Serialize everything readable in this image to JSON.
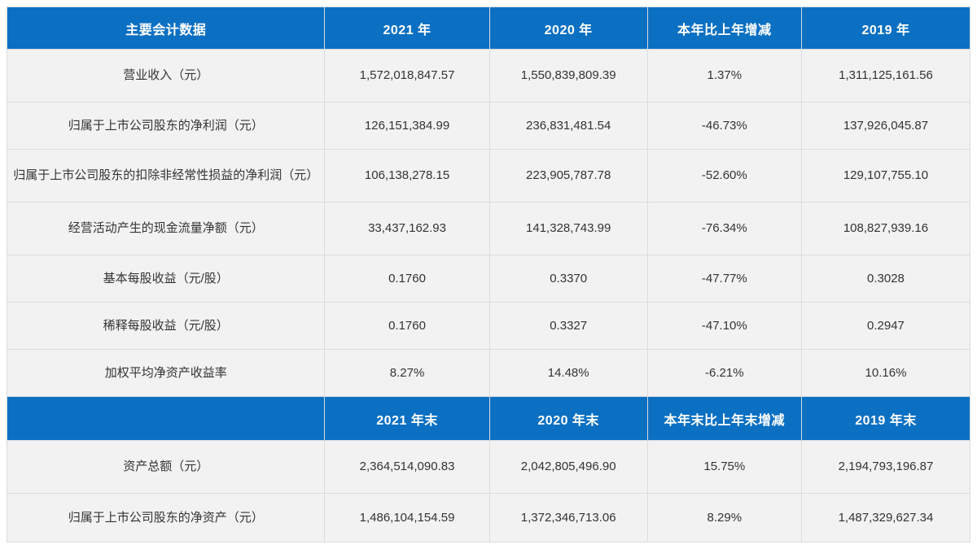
{
  "theme": {
    "header_background": "#0c70c2",
    "header_text_color": "#ffffff",
    "row_background": "#f2f2f2",
    "row_text_color": "#333333",
    "grid_line_color": "#dcdcdc",
    "page_background": "#ffffff"
  },
  "table": {
    "sections": [
      {
        "header": [
          "主要会计数据",
          "2021 年",
          "2020 年",
          "本年比上年增减",
          "2019 年"
        ],
        "rows": [
          {
            "label": "营业收入（元）",
            "values": [
              "1,572,018,847.57",
              "1,550,839,809.39",
              "1.37%",
              "1,311,125,161.56"
            ]
          },
          {
            "label": "归属于上市公司股东的净利润（元）",
            "values": [
              "126,151,384.99",
              "236,831,481.54",
              "-46.73%",
              "137,926,045.87"
            ]
          },
          {
            "label": "归属于上市公司股东的扣除非经常性损益的净利润（元）",
            "values": [
              "106,138,278.15",
              "223,905,787.78",
              "-52.60%",
              "129,107,755.10"
            ]
          },
          {
            "label": "经营活动产生的现金流量净额（元）",
            "values": [
              "33,437,162.93",
              "141,328,743.99",
              "-76.34%",
              "108,827,939.16"
            ]
          },
          {
            "label": "基本每股收益（元/股）",
            "values": [
              "0.1760",
              "0.3370",
              "-47.77%",
              "0.3028"
            ]
          },
          {
            "label": "稀释每股收益（元/股）",
            "values": [
              "0.1760",
              "0.3327",
              "-47.10%",
              "0.2947"
            ]
          },
          {
            "label": "加权平均净资产收益率",
            "values": [
              "8.27%",
              "14.48%",
              "-6.21%",
              "10.16%"
            ]
          }
        ]
      },
      {
        "header": [
          "",
          "2021 年末",
          "2020 年末",
          "本年末比上年末增减",
          "2019 年末"
        ],
        "rows": [
          {
            "label": "资产总额（元）",
            "values": [
              "2,364,514,090.83",
              "2,042,805,496.90",
              "15.75%",
              "2,194,793,196.87"
            ]
          },
          {
            "label": "归属于上市公司股东的净资产（元）",
            "values": [
              "1,486,104,154.59",
              "1,372,346,713.06",
              "8.29%",
              "1,487,329,627.34"
            ]
          }
        ]
      }
    ]
  }
}
